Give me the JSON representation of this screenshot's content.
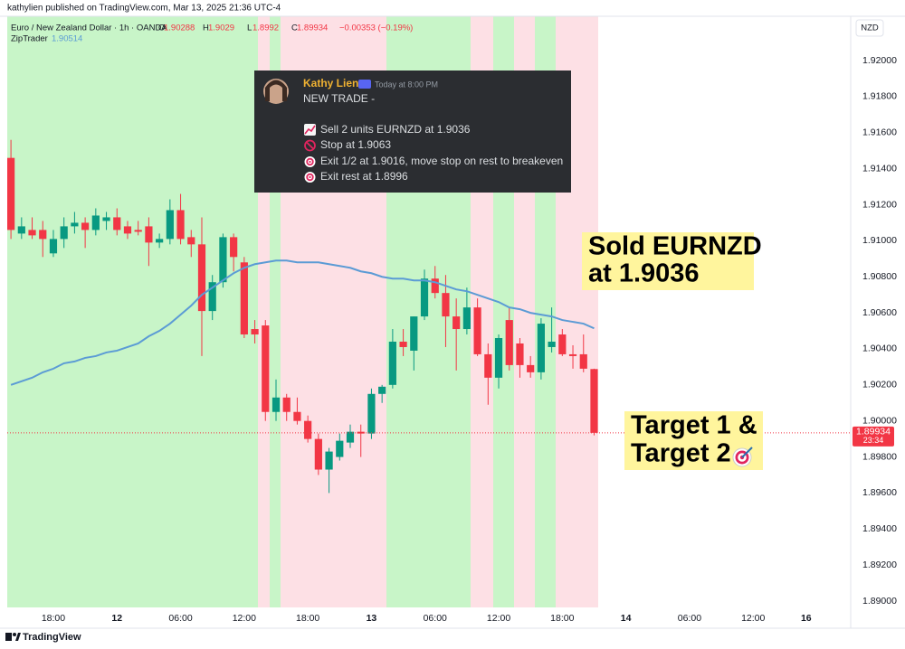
{
  "publisher": "kathylien published on TradingView.com, Mar 13, 2025 21:36 UTC-4",
  "footer": "TradingView",
  "message": {
    "author": "Kathy Lien",
    "time": "Today at 8:00 PM",
    "heading": "NEW TRADE  -",
    "lines": [
      "Sell 2 units EURNZD at 1.9036",
      "Stop at 1.9063",
      "Exit 1/2 at 1.9016, move stop on rest to breakeven",
      "Exit rest at 1.8996"
    ]
  },
  "annotations": [
    [
      "Sold EURNZD",
      "at 1.9036"
    ],
    [
      "Target 1 &",
      "Target 2"
    ]
  ],
  "chart_data": {
    "type": "candlestick",
    "title": "Euro / New Zealand Dollar · 1h · OANDA",
    "ohlc_labels": [
      "O",
      "H",
      "L",
      "C"
    ],
    "change_text": "−0.00353 (−0.19%)",
    "currency": "NZD",
    "countdown": "23:34",
    "series": [
      {
        "name": "EURNZD",
        "up_color": "#089981",
        "down_color": "#f23645",
        "open": [
          1.9146,
          1.9104,
          1.9106,
          1.9106,
          1.9093,
          1.9101,
          1.9108,
          1.911,
          1.9106,
          1.9111,
          1.9113,
          1.9108,
          1.9106,
          1.9108,
          1.9099,
          1.9101,
          1.9117,
          1.9102,
          1.9098,
          1.9061,
          1.9077,
          1.9102,
          1.9088,
          1.9051,
          1.9053,
          1.9005,
          1.9013,
          1.9005,
          1.9,
          1.899,
          1.8973,
          1.898,
          1.8988,
          1.8994,
          1.8993,
          1.9015,
          1.902,
          1.9044,
          1.9039,
          1.9058,
          1.9079,
          1.9071,
          1.9058,
          1.9051,
          1.9063,
          1.9037,
          1.9024,
          1.9056,
          1.9043,
          1.9031,
          1.9027,
          1.9041,
          1.9048,
          1.9037,
          1.9037,
          1.90288
        ],
        "high": [
          1.9156,
          1.9113,
          1.9113,
          1.9111,
          1.9106,
          1.9113,
          1.9116,
          1.9113,
          1.9118,
          1.9116,
          1.9118,
          1.9111,
          1.9111,
          1.9113,
          1.9104,
          1.9123,
          1.9126,
          1.9106,
          1.9113,
          1.9081,
          1.9104,
          1.9104,
          1.9091,
          1.9056,
          1.9056,
          1.9023,
          1.9015,
          1.9013,
          1.9003,
          1.8993,
          1.8985,
          1.8993,
          1.8998,
          1.8998,
          1.9018,
          1.902,
          1.9051,
          1.9051,
          1.9058,
          1.9084,
          1.9086,
          1.9081,
          1.9068,
          1.9074,
          1.9068,
          1.9043,
          1.9048,
          1.9063,
          1.9046,
          1.9036,
          1.9057,
          1.9063,
          1.9051,
          1.9042,
          1.9048,
          1.9029
        ],
        "low": [
          1.9101,
          1.9101,
          1.9101,
          1.9091,
          1.9091,
          1.9096,
          1.9104,
          1.9096,
          1.9103,
          1.9106,
          1.9103,
          1.9101,
          1.9103,
          1.9086,
          1.9096,
          1.9098,
          1.9098,
          1.9091,
          1.9036,
          1.9056,
          1.9074,
          1.9083,
          1.9046,
          1.9043,
          1.9,
          1.9,
          1.9,
          1.8998,
          1.8988,
          1.897,
          1.896,
          1.8978,
          1.8985,
          1.898,
          1.899,
          1.901,
          1.9018,
          1.9036,
          1.9028,
          1.9056,
          1.9068,
          1.9041,
          1.9028,
          1.9048,
          1.9036,
          1.9009,
          1.9018,
          1.9028,
          1.9024,
          1.9024,
          1.9023,
          1.9038,
          1.9036,
          1.9029,
          1.9027,
          1.8992
        ],
        "close": [
          1.9106,
          1.9108,
          1.9103,
          1.9101,
          1.9101,
          1.9108,
          1.911,
          1.9106,
          1.9114,
          1.9113,
          1.9106,
          1.9104,
          1.9105,
          1.9099,
          1.9101,
          1.9117,
          1.9101,
          1.9098,
          1.9061,
          1.9077,
          1.9102,
          1.9091,
          1.9048,
          1.9048,
          1.9005,
          1.9013,
          1.9005,
          1.9,
          1.899,
          1.8973,
          1.8983,
          1.8989,
          1.8994,
          1.8993,
          1.9015,
          1.9019,
          1.9044,
          1.9041,
          1.9058,
          1.9079,
          1.9071,
          1.9058,
          1.9051,
          1.9063,
          1.9037,
          1.9024,
          1.9046,
          1.9031,
          1.9031,
          1.9027,
          1.9054,
          1.9044,
          1.9037,
          1.9036,
          1.9029,
          1.89934
        ]
      }
    ],
    "indicator": {
      "name": "ZipTrader",
      "color": "#5b9bd5",
      "values": [
        1.902,
        1.9022,
        1.9024,
        1.9027,
        1.9029,
        1.9032,
        1.9033,
        1.9035,
        1.9036,
        1.9038,
        1.9039,
        1.9041,
        1.9043,
        1.9047,
        1.905,
        1.9054,
        1.9059,
        1.9064,
        1.907,
        1.9074,
        1.9078,
        1.9082,
        1.9085,
        1.9087,
        1.9088,
        1.9089,
        1.9089,
        1.9088,
        1.9088,
        1.9088,
        1.9087,
        1.9086,
        1.9085,
        1.9083,
        1.9082,
        1.908,
        1.9079,
        1.9079,
        1.9078,
        1.9078,
        1.9077,
        1.9075,
        1.9073,
        1.9072,
        1.907,
        1.9068,
        1.9066,
        1.9063,
        1.9062,
        1.906,
        1.9059,
        1.9058,
        1.9056,
        1.9055,
        1.9054,
        1.90514
      ]
    },
    "xlim": [
      -0.35,
      79.2
    ],
    "xticks": [
      {
        "value": 4,
        "label": "18:00"
      },
      {
        "value": 10,
        "label": "12"
      },
      {
        "value": 16,
        "label": "06:00"
      },
      {
        "value": 22,
        "label": "12:00"
      },
      {
        "value": 28,
        "label": "18:00"
      },
      {
        "value": 34,
        "label": "13"
      },
      {
        "value": 40,
        "label": "06:00"
      },
      {
        "value": 46,
        "label": "12:00"
      },
      {
        "value": 52,
        "label": "18:00"
      },
      {
        "value": 58,
        "label": "14"
      },
      {
        "value": 64,
        "label": "06:00"
      },
      {
        "value": 70,
        "label": "12:00"
      },
      {
        "value": 75,
        "label": "16"
      }
    ],
    "ylim": [
      1.88965,
      1.92246
    ],
    "yticks": [
      {
        "value": 1.89,
        "label": "1.89000"
      },
      {
        "value": 1.892,
        "label": "1.89200"
      },
      {
        "value": 1.894,
        "label": "1.89400"
      },
      {
        "value": 1.896,
        "label": "1.89600"
      },
      {
        "value": 1.898,
        "label": "1.89800"
      },
      {
        "value": 1.9,
        "label": "1.90000"
      },
      {
        "value": 1.902,
        "label": "1.90200"
      },
      {
        "value": 1.904,
        "label": "1.90400"
      },
      {
        "value": 1.906,
        "label": "1.90600"
      },
      {
        "value": 1.908,
        "label": "1.90800"
      },
      {
        "value": 1.91,
        "label": "1.91000"
      },
      {
        "value": 1.912,
        "label": "1.91200"
      },
      {
        "value": 1.914,
        "label": "1.91400"
      },
      {
        "value": 1.916,
        "label": "1.91600"
      },
      {
        "value": 1.918,
        "label": "1.91800"
      },
      {
        "value": 1.92,
        "label": "1.92000"
      }
    ],
    "grid": false
  }
}
